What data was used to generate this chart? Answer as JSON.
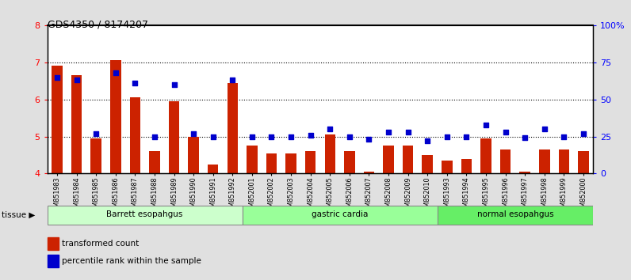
{
  "title": "GDS4350 / 8174207",
  "samples": [
    "GSM851983",
    "GSM851984",
    "GSM851985",
    "GSM851986",
    "GSM851987",
    "GSM851988",
    "GSM851989",
    "GSM851990",
    "GSM851991",
    "GSM851992",
    "GSM852001",
    "GSM852002",
    "GSM852003",
    "GSM852004",
    "GSM852005",
    "GSM852006",
    "GSM852007",
    "GSM852008",
    "GSM852009",
    "GSM852010",
    "GSM851993",
    "GSM851994",
    "GSM851995",
    "GSM851996",
    "GSM851997",
    "GSM851998",
    "GSM851999",
    "GSM852000"
  ],
  "bar_values": [
    6.9,
    6.65,
    4.95,
    7.05,
    6.05,
    4.6,
    5.95,
    5.0,
    4.25,
    6.45,
    4.75,
    4.55,
    4.55,
    4.6,
    5.05,
    4.6,
    4.05,
    4.75,
    4.75,
    4.5,
    4.35,
    4.4,
    4.95,
    4.65,
    4.05,
    4.65,
    4.65,
    4.6
  ],
  "percentile_values": [
    65,
    63,
    27,
    68,
    61,
    25,
    60,
    27,
    25,
    63,
    25,
    25,
    25,
    26,
    30,
    25,
    23,
    28,
    28,
    22,
    25,
    25,
    33,
    28,
    24,
    30,
    25,
    27
  ],
  "bar_color": "#cc2200",
  "dot_color": "#0000cc",
  "ylim_left": [
    4,
    8
  ],
  "ylim_right": [
    0,
    100
  ],
  "yticks_left": [
    4,
    5,
    6,
    7,
    8
  ],
  "yticks_right": [
    0,
    25,
    50,
    75,
    100
  ],
  "ytick_labels_right": [
    "0",
    "25",
    "50",
    "75",
    "100%"
  ],
  "groups": [
    {
      "label": "Barrett esopahgus",
      "start": 0,
      "end": 10
    },
    {
      "label": "gastric cardia",
      "start": 10,
      "end": 20
    },
    {
      "label": "normal esopahgus",
      "start": 20,
      "end": 28
    }
  ],
  "group_colors": [
    "#ccffcc",
    "#99ff99",
    "#66ee66"
  ],
  "tissue_label": "tissue",
  "legend_bar_label": "transformed count",
  "legend_dot_label": "percentile rank within the sample",
  "bg_color": "#e0e0e0",
  "plot_bg_color": "#ffffff",
  "grid_lines": [
    5,
    6,
    7
  ],
  "dotted_line_color": "black"
}
